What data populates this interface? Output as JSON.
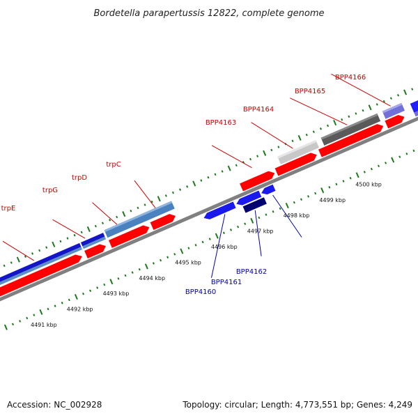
{
  "title": "Bordetella parapertussis 12822, complete genome",
  "footer": {
    "accession": "Accession: NC_002928",
    "topology": "Topology: circular; Length: 4,773,551 bp; Genes: 4,249"
  },
  "colors": {
    "forward_gene": "#ff0000",
    "reverse_gene": "#0000ee",
    "backbone": "#808080",
    "tick": "#1a7a1a",
    "label_forward": "#cc0000",
    "label_reverse": "#0000b0",
    "operon_light": "#5b8fc7",
    "operon_dark": "#1515c8",
    "grey_light": "#c8c8c8",
    "grey_dark": "#5a5a5a",
    "purple": "#7070d8",
    "navy": "#000070"
  },
  "scale_labels": [
    "4491 kbp",
    "4492 kbp",
    "4493 kbp",
    "4494 kbp",
    "4495 kbp",
    "4496 kbp",
    "4497 kbp",
    "4498 kbp",
    "4499 kbp",
    "4500 kbp"
  ],
  "top_labels": [
    "trpE",
    "trpG",
    "trpD",
    "trpC",
    "BPP4163",
    "BPP4164",
    "BPP4165",
    "BPP4166"
  ],
  "bottom_labels": [
    "BPP4160",
    "BPP4161",
    "BPP4162"
  ]
}
